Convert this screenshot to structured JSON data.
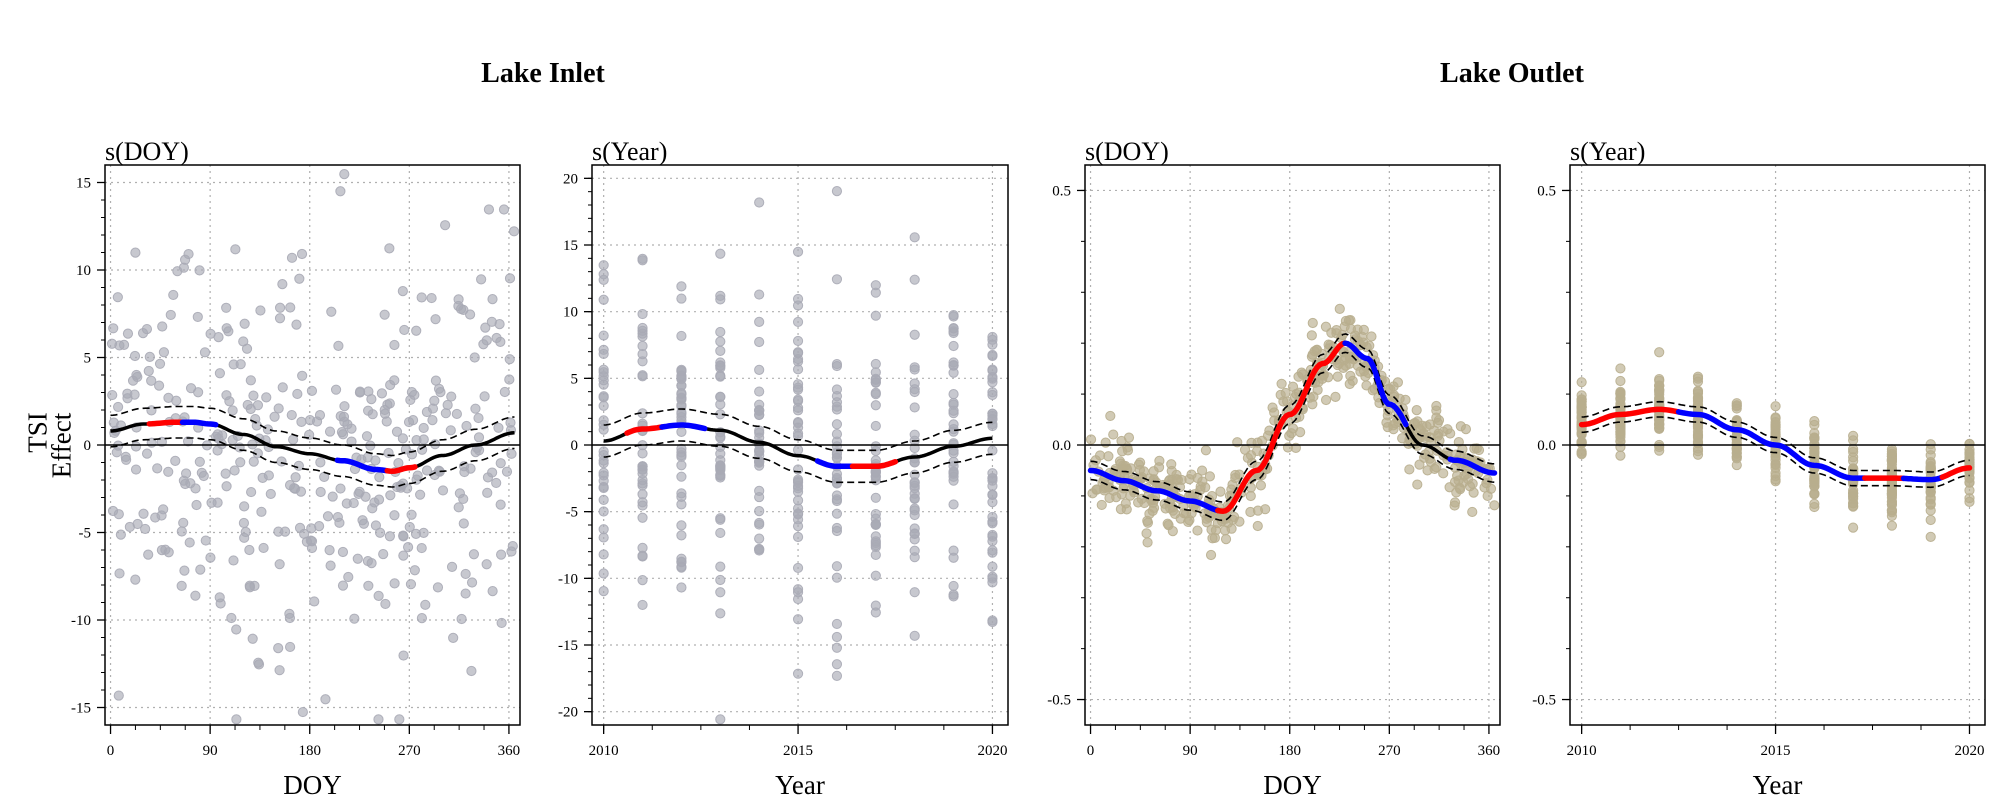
{
  "figure": {
    "group_titles": [
      "Lake Inlet",
      "Lake Outlet"
    ],
    "ylabel_line1": "TSI",
    "ylabel_line2": "Effect"
  },
  "colors": {
    "inlet_points": "#a9aab5",
    "outlet_points": "#b8ae8e",
    "increasing": "#ff0000",
    "decreasing": "#0000ff",
    "curve": "#000000",
    "grid": "#b0b0b0"
  },
  "chart_data": [
    {
      "type": "scatter",
      "group": "Lake Inlet",
      "title": "s(DOY)",
      "xlabel": "DOY",
      "ylabel": "TSI Effect",
      "xlim": [
        -5,
        370
      ],
      "ylim": [
        -16,
        16
      ],
      "xticks": [
        0,
        90,
        180,
        270,
        360
      ],
      "yticks": [
        -15,
        -10,
        -5,
        0,
        5,
        10,
        15
      ],
      "grid": true,
      "point_color_key": "inlet_points",
      "x_range_points": [
        0,
        365
      ],
      "point_count": 420,
      "point_spread": 5.5,
      "point_mode": "uniform",
      "smooth": {
        "x": [
          0,
          30,
          60,
          75,
          90,
          120,
          150,
          180,
          210,
          240,
          255,
          270,
          300,
          330,
          365
        ],
        "y": [
          0.8,
          1.2,
          1.3,
          1.3,
          1.2,
          0.6,
          -0.1,
          -0.5,
          -0.9,
          -1.4,
          -1.5,
          -1.3,
          -0.6,
          0.0,
          0.7
        ],
        "ci_halfwidth": 0.9,
        "segments": [
          {
            "from": 35,
            "to": 65,
            "trend": "increasing"
          },
          {
            "from": 65,
            "to": 95,
            "trend": "decreasing"
          },
          {
            "from": 205,
            "to": 250,
            "trend": "decreasing"
          },
          {
            "from": 250,
            "to": 275,
            "trend": "increasing"
          }
        ]
      }
    },
    {
      "type": "scatter",
      "group": "Lake Inlet",
      "title": "s(Year)",
      "xlabel": "Year",
      "ylabel": "TSI Effect",
      "xlim": [
        2009.7,
        2020.4
      ],
      "ylim": [
        -21,
        21
      ],
      "xticks": [
        2010,
        2015,
        2020
      ],
      "yticks": [
        -20,
        -15,
        -10,
        -5,
        0,
        5,
        10,
        15,
        20
      ],
      "grid": true,
      "point_color_key": "inlet_points",
      "point_count": 420,
      "point_spread": 6.5,
      "point_mode": "columns",
      "point_columns": [
        2010,
        2011,
        2012,
        2013,
        2014,
        2015,
        2016,
        2017,
        2018,
        2019,
        2020
      ],
      "smooth": {
        "x": [
          2010,
          2011,
          2012,
          2013,
          2014,
          2015,
          2016,
          2017,
          2018,
          2019,
          2020
        ],
        "y": [
          0.3,
          1.2,
          1.5,
          1.1,
          0.2,
          -0.8,
          -1.6,
          -1.6,
          -0.9,
          -0.1,
          0.5
        ],
        "ci_halfwidth": 1.2,
        "segments": [
          {
            "from": 2010.6,
            "to": 2011.5,
            "trend": "increasing"
          },
          {
            "from": 2011.5,
            "to": 2012.6,
            "trend": "decreasing"
          },
          {
            "from": 2015.5,
            "to": 2016.4,
            "trend": "decreasing"
          },
          {
            "from": 2016.4,
            "to": 2017.5,
            "trend": "increasing"
          }
        ]
      }
    },
    {
      "type": "scatter",
      "group": "Lake Outlet",
      "title": "s(DOY)",
      "xlabel": "DOY",
      "ylabel": "TSI Effect",
      "xlim": [
        -5,
        370
      ],
      "ylim": [
        -0.55,
        0.55
      ],
      "xticks": [
        0,
        90,
        180,
        270,
        360
      ],
      "yticks": [
        -0.5,
        0,
        0.5
      ],
      "ytick_labels": [
        "-0.5",
        "0.0",
        "0.5"
      ],
      "grid": true,
      "point_color_key": "outlet_points",
      "x_range_points": [
        0,
        365
      ],
      "point_count": 520,
      "point_spread": 0.035,
      "point_mode": "uniform",
      "smooth": {
        "x": [
          0,
          30,
          60,
          90,
          120,
          150,
          180,
          210,
          230,
          250,
          270,
          300,
          330,
          365
        ],
        "y": [
          -0.05,
          -0.07,
          -0.09,
          -0.11,
          -0.13,
          -0.05,
          0.06,
          0.16,
          0.2,
          0.17,
          0.08,
          0.0,
          -0.03,
          -0.055
        ],
        "ci_halfwidth": 0.018,
        "segments": [
          {
            "from": 0,
            "to": 115,
            "trend": "decreasing"
          },
          {
            "from": 115,
            "to": 230,
            "trend": "increasing"
          },
          {
            "from": 230,
            "to": 285,
            "trend": "decreasing"
          },
          {
            "from": 325,
            "to": 365,
            "trend": "decreasing"
          }
        ]
      }
    },
    {
      "type": "scatter",
      "group": "Lake Outlet",
      "title": "s(Year)",
      "xlabel": "Year",
      "ylabel": "TSI Effect",
      "xlim": [
        2009.7,
        2020.4
      ],
      "ylim": [
        -0.55,
        0.55
      ],
      "xticks": [
        2010,
        2015,
        2020
      ],
      "yticks": [
        -0.5,
        0,
        0.5
      ],
      "ytick_labels": [
        "-0.5",
        "0.0",
        "0.5"
      ],
      "grid": true,
      "point_color_key": "outlet_points",
      "point_count": 440,
      "point_spread": 0.035,
      "point_mode": "columns",
      "point_columns": [
        2010,
        2011,
        2012,
        2013,
        2014,
        2015,
        2016,
        2017,
        2018,
        2019,
        2020
      ],
      "smooth": {
        "x": [
          2010,
          2011,
          2012,
          2013,
          2014,
          2015,
          2016,
          2017,
          2018,
          2019,
          2020
        ],
        "y": [
          0.04,
          0.06,
          0.07,
          0.06,
          0.03,
          0.0,
          -0.04,
          -0.065,
          -0.065,
          -0.068,
          -0.045
        ],
        "ci_halfwidth": 0.015,
        "segments": [
          {
            "from": 2010,
            "to": 2012.5,
            "trend": "increasing"
          },
          {
            "from": 2012.5,
            "to": 2017.3,
            "trend": "decreasing"
          },
          {
            "from": 2017.3,
            "to": 2018.3,
            "trend": "increasing"
          },
          {
            "from": 2018.3,
            "to": 2019.3,
            "trend": "decreasing"
          },
          {
            "from": 2019.3,
            "to": 2020,
            "trend": "increasing"
          }
        ]
      }
    }
  ]
}
